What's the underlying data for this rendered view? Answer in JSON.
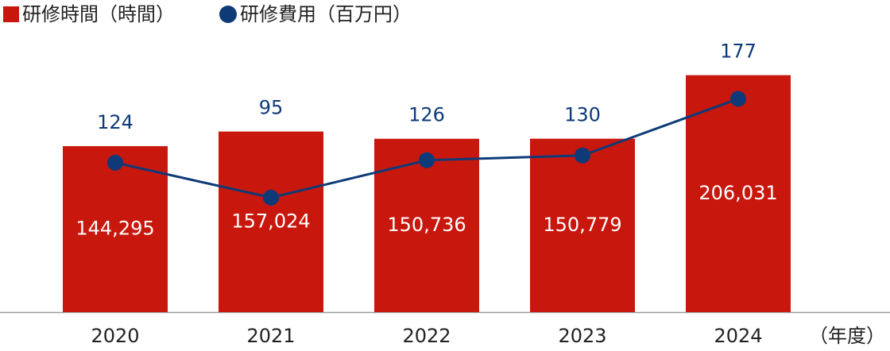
{
  "chart_data": {
    "type": "bar-line",
    "categories": [
      "2020",
      "2021",
      "2022",
      "2023",
      "2024"
    ],
    "x_label": "（年度）",
    "series": [
      {
        "name": "研修時間（時間）",
        "color": "#c8170d",
        "values": [
          144295,
          157024,
          150736,
          150779,
          206031
        ],
        "value_labels": [
          "144,295",
          "157,024",
          "150,736",
          "150,779",
          "206,031"
        ]
      },
      {
        "name": "研修費用（百万円）",
        "color": "#0e3a78",
        "axis": "y2",
        "values": [
          124,
          95,
          126,
          130,
          177
        ]
      }
    ],
    "ylim": [
      0,
      271400
    ],
    "y2lim": [
      0,
      259
    ]
  }
}
